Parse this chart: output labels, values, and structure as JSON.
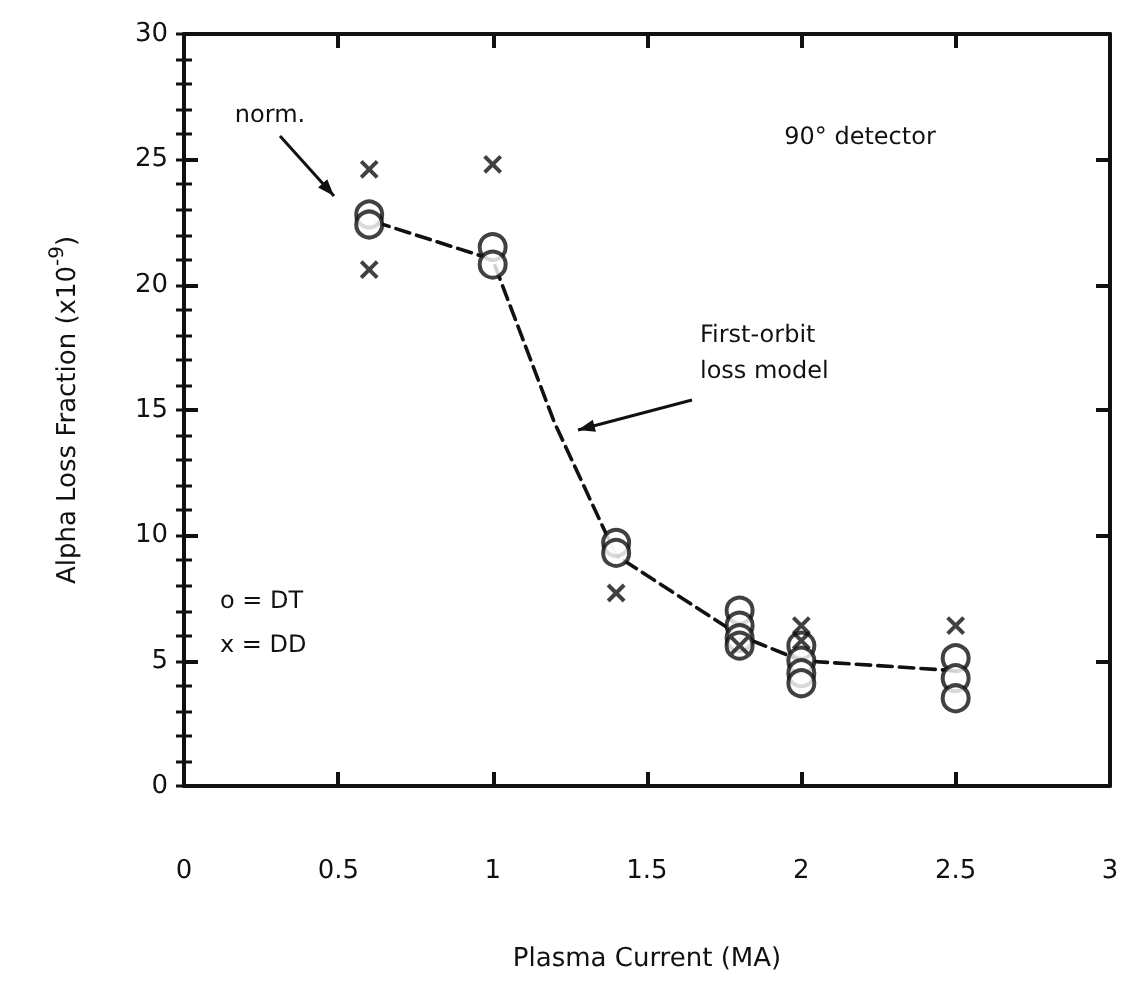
{
  "chart_data": {
    "type": "scatter",
    "xlabel": "Plasma Current (MA)",
    "ylabel": "Alpha Loss Fraction (x10$^{-9}$)",
    "xlim": [
      0,
      3
    ],
    "xticks": [
      0,
      0.5,
      1,
      1.5,
      2,
      2.5,
      3
    ],
    "ylim": [
      0,
      30
    ],
    "yticks": [
      0,
      5,
      10,
      15,
      20,
      25,
      30
    ],
    "grid": false,
    "series": [
      {
        "marker": "circle",
        "color": "#111111",
        "x": [
          0.6,
          0.6,
          1,
          1,
          1.4,
          1.4,
          1.8,
          1.8,
          1.8,
          1.8,
          2,
          2,
          2,
          2,
          2.5,
          2.5,
          2.5
        ],
        "values": [
          22.8,
          22.4,
          21.5,
          20.8,
          9.7,
          9.3,
          7,
          6.4,
          5.9,
          5.6,
          5.6,
          5,
          4.5,
          4.1,
          5.1,
          4.3,
          3.5
        ]
      },
      {
        "marker": "cross",
        "color": "#111111",
        "x": [
          0.6,
          0.6,
          1,
          1.4,
          1.8,
          2,
          2,
          2.5
        ],
        "values": [
          24.6,
          20.6,
          24.8,
          7.7,
          5.6,
          6.4,
          5.8,
          6.4
        ]
      },
      {
        "type": "line",
        "line_style": "dashed",
        "marker": "none",
        "color": "#111111",
        "x": [
          0.62,
          1,
          1.2,
          1.4,
          1.8,
          2,
          2.5
        ],
        "values": [
          22.5,
          21,
          14.5,
          9.2,
          6,
          5,
          4.6
        ]
      }
    ],
    "annotations": [
      "norm.",
      "90° detector",
      "First-orbit\nloss model",
      "o = DT",
      "x = DD"
    ]
  }
}
